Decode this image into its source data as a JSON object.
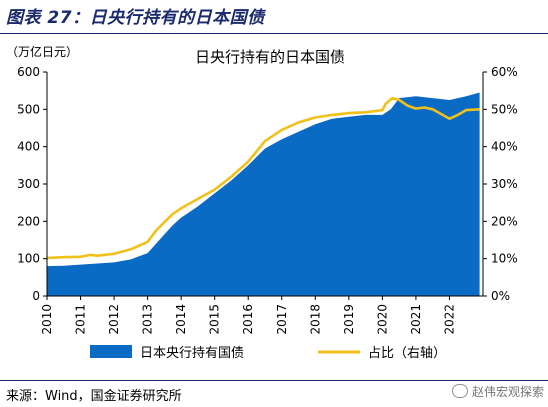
{
  "figure": {
    "title": "图表 27：日央行持有的日本国债",
    "source": "来源：Wind，国金证券研究所",
    "watermark": "赵伟宏观探索"
  },
  "chart_data": {
    "type": "area",
    "title": "日央行持有的日本国债",
    "ylabel_left": "（万亿日元）",
    "xlabel": "",
    "x_ticks": [
      "2010",
      "2011",
      "2012",
      "2013",
      "2014",
      "2015",
      "2016",
      "2017",
      "2018",
      "2019",
      "2020",
      "2021",
      "2022"
    ],
    "y_left": {
      "min": 0,
      "max": 600,
      "ticks": [
        0,
        100,
        200,
        300,
        400,
        500,
        600
      ]
    },
    "y_right": {
      "min": 0,
      "max": 60,
      "ticks": [
        "0%",
        "10%",
        "20%",
        "30%",
        "40%",
        "50%",
        "60%"
      ]
    },
    "grid": false,
    "legend_position": "bottom",
    "colors": {
      "area": "#0a6bc4",
      "line": "#f2c01a",
      "title": "#1a2a6c"
    },
    "series": [
      {
        "name": "日本央行持有国债",
        "axis": "left",
        "type": "area",
        "x": [
          2010.0,
          2010.5,
          2011.0,
          2011.5,
          2012.0,
          2012.5,
          2013.0,
          2013.25,
          2013.5,
          2013.75,
          2014.0,
          2014.5,
          2015.0,
          2015.5,
          2016.0,
          2016.5,
          2017.0,
          2017.5,
          2018.0,
          2018.5,
          2019.0,
          2019.5,
          2020.0,
          2020.25,
          2020.5,
          2021.0,
          2021.5,
          2022.0,
          2022.5,
          2022.9
        ],
        "values": [
          80,
          81,
          84,
          87,
          90,
          98,
          115,
          140,
          165,
          190,
          210,
          240,
          275,
          310,
          350,
          395,
          420,
          440,
          460,
          475,
          480,
          485,
          485,
          500,
          530,
          535,
          530,
          525,
          535,
          545
        ]
      },
      {
        "name": "占比（右轴）",
        "axis": "right",
        "type": "line",
        "x": [
          2010.0,
          2010.5,
          2011.0,
          2011.3,
          2011.5,
          2012.0,
          2012.5,
          2013.0,
          2013.25,
          2013.5,
          2013.75,
          2014.0,
          2014.5,
          2015.0,
          2015.5,
          2016.0,
          2016.5,
          2017.0,
          2017.5,
          2018.0,
          2018.5,
          2019.0,
          2019.5,
          2020.0,
          2020.1,
          2020.3,
          2020.5,
          2020.75,
          2021.0,
          2021.25,
          2021.5,
          2022.0,
          2022.25,
          2022.5,
          2022.9
        ],
        "values": [
          10.2,
          10.4,
          10.5,
          11.0,
          10.8,
          11.3,
          12.5,
          14.5,
          17.5,
          19.8,
          22.0,
          23.5,
          26.0,
          28.5,
          32.0,
          36.0,
          41.5,
          44.5,
          46.5,
          47.8,
          48.5,
          49.0,
          49.2,
          49.8,
          51.5,
          53.0,
          52.5,
          51.0,
          50.2,
          50.5,
          50.0,
          47.5,
          48.5,
          49.8,
          50.0
        ]
      }
    ],
    "legend": [
      {
        "label": "日本央行持有国债",
        "kind": "area"
      },
      {
        "label": "占比（右轴）",
        "kind": "line"
      }
    ]
  }
}
